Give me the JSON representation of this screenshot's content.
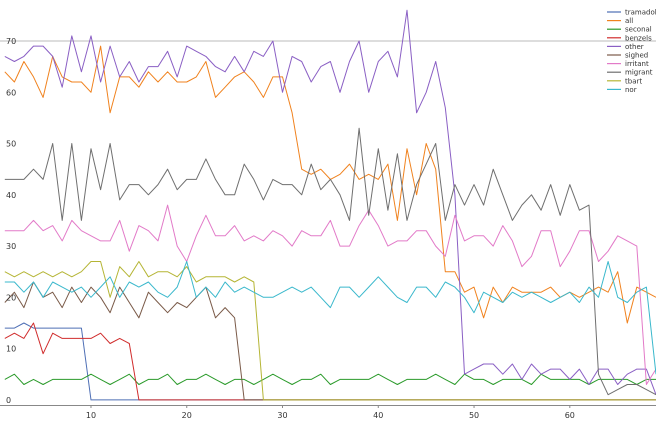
{
  "chart_data": {
    "type": "line",
    "xlim": [
      0.5,
      69
    ],
    "ylim": [
      -1,
      78
    ],
    "x_ticks": [
      10,
      20,
      30,
      40,
      50,
      60
    ],
    "y_ticks": [
      0,
      10,
      20,
      30,
      40,
      50,
      60,
      70
    ],
    "reference_line": {
      "y": 70,
      "color": "#bbbbbb"
    },
    "grid": false,
    "legend": "top-right",
    "x": [
      1,
      2,
      3,
      4,
      5,
      6,
      7,
      8,
      9,
      10,
      11,
      12,
      13,
      14,
      15,
      16,
      17,
      18,
      19,
      20,
      21,
      22,
      23,
      24,
      25,
      26,
      27,
      28,
      29,
      30,
      31,
      32,
      33,
      34,
      35,
      36,
      37,
      38,
      39,
      40,
      41,
      42,
      43,
      44,
      45,
      46,
      47,
      48,
      49,
      50,
      51,
      52,
      53,
      54,
      55,
      56,
      57,
      58,
      59,
      60,
      61,
      62,
      63,
      64,
      65,
      66,
      67,
      68,
      69
    ],
    "series": [
      {
        "name": "tramadol",
        "color": "#4e6fb5",
        "values": [
          14,
          14,
          15,
          14,
          14,
          14,
          14,
          14,
          14,
          0,
          0,
          0,
          0,
          0,
          0,
          0,
          0,
          0,
          0,
          0,
          0,
          0,
          0,
          0,
          0,
          0,
          0,
          0,
          0,
          0,
          0,
          0,
          0,
          0,
          0,
          0,
          0,
          0,
          0,
          0,
          0,
          0,
          0,
          0,
          0,
          0,
          0,
          0,
          0,
          0,
          0,
          0,
          0,
          0,
          0,
          0,
          0,
          0,
          0,
          0,
          0,
          0,
          0,
          0,
          0,
          0,
          0,
          0,
          0
        ]
      },
      {
        "name": "all",
        "color": "#f0821e",
        "values": [
          64,
          62,
          66,
          63,
          59,
          67,
          63,
          62,
          62,
          60,
          69,
          56,
          63,
          63,
          61,
          64,
          62,
          64,
          62,
          62,
          63,
          66,
          59,
          61,
          63,
          64,
          62,
          59,
          63,
          63,
          56,
          45,
          44,
          45,
          43,
          44,
          46,
          43,
          44,
          43,
          46,
          35,
          49,
          40,
          50,
          45,
          25,
          25,
          21,
          22,
          16,
          22,
          19,
          22,
          21,
          21,
          21,
          22,
          20,
          21,
          20,
          21,
          22,
          21,
          25,
          15,
          22,
          21,
          20
        ]
      },
      {
        "name": "seconal",
        "color": "#2a9a2a",
        "values": [
          4,
          5,
          3,
          4,
          3,
          4,
          4,
          4,
          4,
          5,
          4,
          3,
          4,
          5,
          3,
          4,
          4,
          5,
          3,
          4,
          4,
          5,
          4,
          3,
          4,
          4,
          3,
          4,
          5,
          4,
          3,
          4,
          4,
          5,
          3,
          4,
          4,
          4,
          4,
          5,
          4,
          3,
          4,
          4,
          4,
          5,
          4,
          3,
          5,
          4,
          4,
          3,
          4,
          4,
          4,
          3,
          5,
          4,
          4,
          4,
          4,
          3,
          4,
          4,
          4,
          4,
          3,
          4,
          4
        ]
      },
      {
        "name": "benzels",
        "color": "#d02c2c",
        "values": [
          12,
          13,
          12,
          15,
          9,
          13,
          12,
          12,
          12,
          12,
          13,
          11,
          12,
          11,
          0,
          0,
          0,
          0,
          0,
          0,
          0,
          0,
          0,
          0,
          0,
          0,
          0,
          0,
          0,
          0,
          0,
          0,
          0,
          0,
          0,
          0,
          0,
          0,
          0,
          0,
          0,
          0,
          0,
          0,
          0,
          0,
          0,
          0,
          0,
          0,
          0,
          0,
          0,
          0,
          0,
          0,
          0,
          0,
          0,
          0,
          0,
          0,
          0,
          0,
          0,
          0,
          0,
          0,
          0
        ]
      },
      {
        "name": "other",
        "color": "#8a5fc4",
        "values": [
          67,
          66,
          67,
          69,
          69,
          67,
          61,
          71,
          64,
          71,
          62,
          69,
          63,
          66,
          62,
          65,
          65,
          68,
          63,
          69,
          68,
          67,
          65,
          64,
          67,
          64,
          68,
          67,
          70,
          60,
          67,
          66,
          62,
          65,
          66,
          60,
          66,
          70,
          60,
          66,
          68,
          63,
          76,
          56,
          60,
          66,
          57,
          40,
          5,
          6,
          7,
          7,
          5,
          7,
          4,
          7,
          5,
          6,
          6,
          4,
          6,
          3,
          6,
          6,
          3,
          5,
          6,
          6,
          1
        ]
      },
      {
        "name": "sighed",
        "color": "#7a5a48",
        "values": [
          19,
          21,
          18,
          23,
          20,
          21,
          18,
          22,
          19,
          22,
          20,
          17,
          22,
          19,
          16,
          21,
          19,
          17,
          19,
          18,
          20,
          22,
          16,
          18,
          16,
          0,
          0,
          0,
          0,
          0,
          0,
          0,
          0,
          0,
          0,
          0,
          0,
          0,
          0,
          0,
          0,
          0,
          0,
          0,
          0,
          0,
          0,
          0,
          0,
          0,
          0,
          0,
          0,
          0,
          0,
          0,
          0,
          0,
          0,
          0,
          0,
          0,
          0,
          0,
          0,
          0,
          0,
          0,
          0
        ]
      },
      {
        "name": "irritant",
        "color": "#e27ac8",
        "values": [
          33,
          33,
          33,
          35,
          33,
          34,
          31,
          35,
          33,
          32,
          31,
          31,
          35,
          29,
          34,
          33,
          31,
          38,
          30,
          27,
          32,
          36,
          32,
          32,
          34,
          31,
          32,
          31,
          33,
          32,
          30,
          33,
          32,
          32,
          35,
          30,
          30,
          34,
          37,
          34,
          30,
          31,
          31,
          33,
          33,
          30,
          28,
          36,
          31,
          32,
          32,
          30,
          34,
          31,
          26,
          28,
          33,
          33,
          26,
          29,
          33,
          33,
          27,
          29,
          32,
          31,
          30,
          3,
          6
        ]
      },
      {
        "name": "migrant",
        "color": "#6f6f6f",
        "values": [
          43,
          43,
          43,
          45,
          43,
          50,
          35,
          50,
          35,
          49,
          41,
          50,
          39,
          42,
          42,
          40,
          42,
          45,
          41,
          43,
          43,
          47,
          43,
          40,
          40,
          46,
          43,
          39,
          43,
          42,
          42,
          40,
          46,
          41,
          43,
          40,
          35,
          53,
          36,
          49,
          37,
          48,
          35,
          42,
          46,
          50,
          35,
          42,
          38,
          42,
          38,
          45,
          40,
          35,
          38,
          40,
          37,
          42,
          36,
          42,
          37,
          38,
          5,
          1,
          2,
          3,
          3,
          2,
          1
        ]
      },
      {
        "name": "tbart",
        "color": "#b5b535",
        "values": [
          25,
          24,
          25,
          24,
          25,
          24,
          25,
          24,
          25,
          27,
          27,
          20,
          26,
          24,
          27,
          24,
          25,
          25,
          24,
          26,
          23,
          24,
          24,
          24,
          23,
          24,
          23,
          0,
          0,
          0,
          0,
          0,
          0,
          0,
          0,
          0,
          0,
          0,
          0,
          0,
          0,
          0,
          0,
          0,
          0,
          0,
          0,
          0,
          0,
          0,
          0,
          0,
          0,
          0,
          0,
          0,
          0,
          0,
          0,
          0,
          0,
          0,
          0,
          0,
          0,
          0,
          0,
          0,
          0
        ]
      },
      {
        "name": "nor",
        "color": "#3ab8cc",
        "values": [
          23,
          23,
          21,
          23,
          20,
          23,
          22,
          21,
          22,
          20,
          22,
          24,
          20,
          23,
          22,
          23,
          21,
          20,
          22,
          27,
          20,
          22,
          20,
          23,
          21,
          22,
          21,
          20,
          20,
          21,
          22,
          21,
          22,
          20,
          18,
          22,
          22,
          20,
          22,
          24,
          22,
          20,
          19,
          22,
          22,
          20,
          23,
          22,
          20,
          17,
          21,
          20,
          19,
          21,
          20,
          21,
          20,
          19,
          20,
          21,
          19,
          22,
          20,
          27,
          20,
          19,
          21,
          22,
          5
        ]
      }
    ]
  }
}
